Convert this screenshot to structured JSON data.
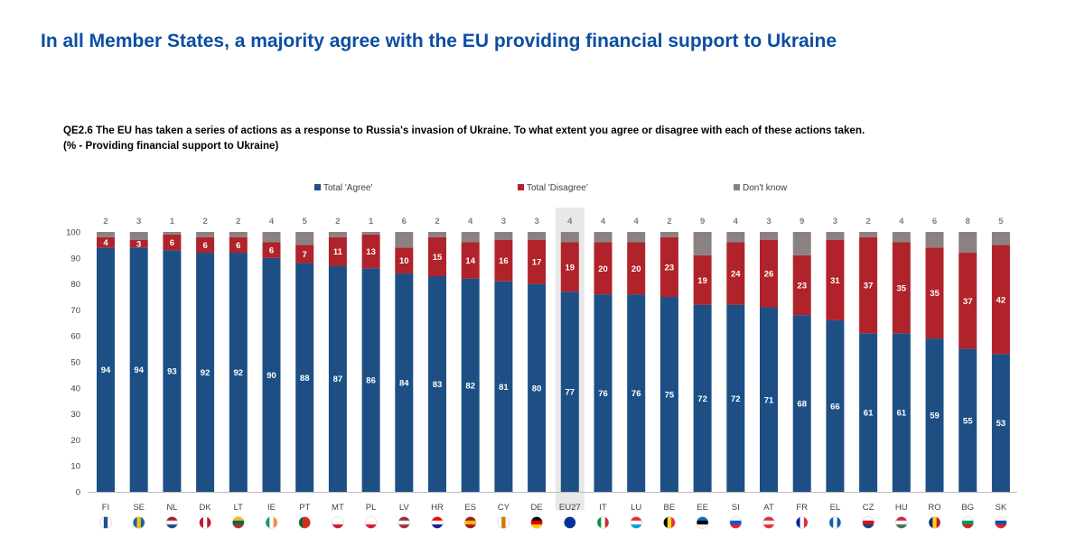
{
  "title": "In all Member States, a majority agree with the EU providing financial support to Ukraine",
  "question": {
    "line1": "QE2.6  The EU has taken a series of actions as a response to Russia's invasion of Ukraine. To what extent you agree or disagree with each of these actions taken.",
    "line2": "(% - Providing financial support to Ukraine)"
  },
  "colors": {
    "agree": "#1d4f85",
    "disagree": "#b0232a",
    "dont_know": "#8c8182",
    "highlight": "#e8e8e8",
    "axis_text": "#404040"
  },
  "chart_data": {
    "type": "bar",
    "stacked": true,
    "categories": [
      "FI",
      "SE",
      "NL",
      "DK",
      "LT",
      "IE",
      "PT",
      "MT",
      "PL",
      "LV",
      "HR",
      "ES",
      "CY",
      "DE",
      "EU27",
      "IT",
      "LU",
      "BE",
      "EE",
      "SI",
      "AT",
      "FR",
      "EL",
      "CZ",
      "HU",
      "RO",
      "BG",
      "SK"
    ],
    "highlight_category": "EU27",
    "series": [
      {
        "name": "Total 'Agree'",
        "color_key": "agree",
        "values": [
          94,
          94,
          93,
          92,
          92,
          90,
          88,
          87,
          86,
          84,
          83,
          82,
          81,
          80,
          77,
          76,
          76,
          75,
          72,
          72,
          71,
          68,
          66,
          61,
          61,
          59,
          55,
          53
        ]
      },
      {
        "name": "Total 'Disagree'",
        "color_key": "disagree",
        "values": [
          4,
          3,
          6,
          6,
          6,
          6,
          7,
          11,
          13,
          10,
          15,
          14,
          16,
          17,
          19,
          20,
          20,
          23,
          19,
          24,
          26,
          23,
          31,
          37,
          35,
          35,
          37,
          42
        ]
      },
      {
        "name": "Don't know",
        "color_key": "dont_know",
        "values": [
          2,
          3,
          1,
          2,
          2,
          4,
          5,
          2,
          1,
          6,
          2,
          4,
          3,
          3,
          4,
          4,
          4,
          2,
          9,
          4,
          3,
          9,
          3,
          2,
          4,
          6,
          8,
          5
        ]
      }
    ],
    "ylim": [
      0,
      100
    ],
    "yticks": [
      0,
      10,
      20,
      30,
      40,
      50,
      60,
      70,
      80,
      90,
      100
    ],
    "legend_position": "top-center",
    "grid": false,
    "xlabel": "",
    "ylabel": ""
  }
}
